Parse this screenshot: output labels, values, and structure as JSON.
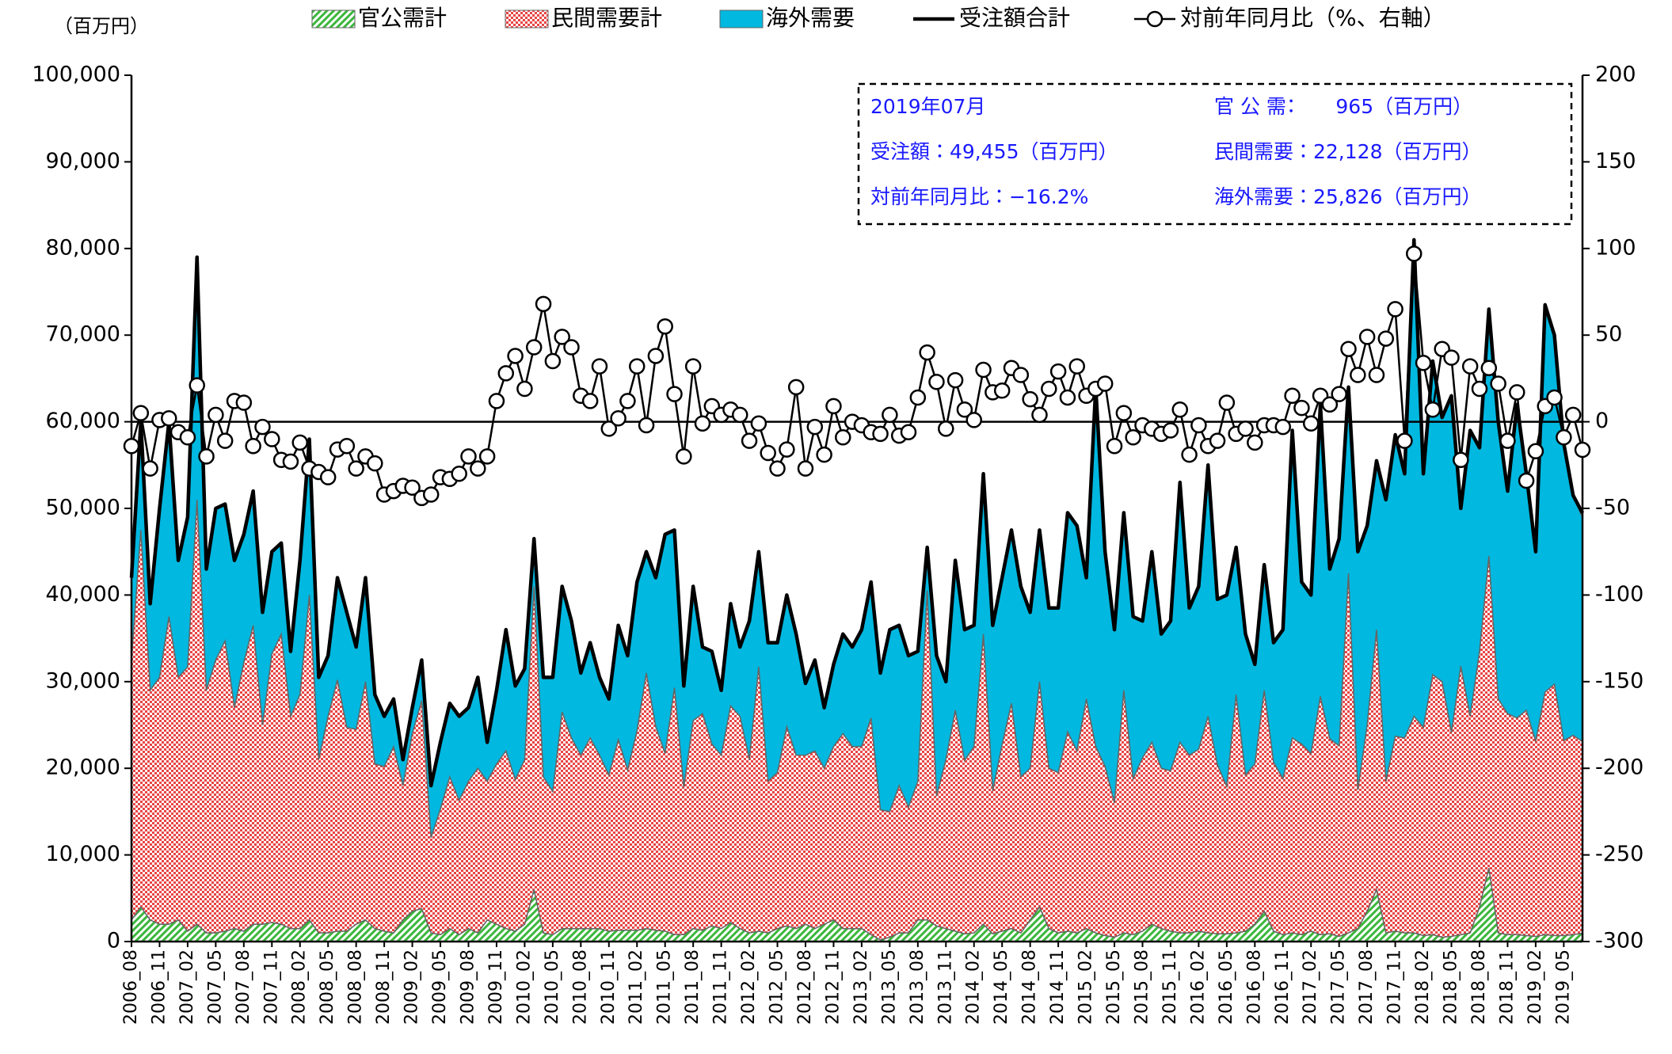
{
  "chart_data": {
    "type": "area",
    "y_unit": "（百万円）",
    "categories": [
      "2006_08",
      null,
      null,
      "2006_11",
      null,
      null,
      "2007_02",
      null,
      null,
      "2007_05",
      null,
      null,
      "2007_08",
      null,
      null,
      "2007_11",
      null,
      null,
      "2008_02",
      null,
      null,
      "2008_05",
      null,
      null,
      "2008_08",
      null,
      null,
      "2008_11",
      null,
      null,
      "2009_02",
      null,
      null,
      "2009_05",
      null,
      null,
      "2009_08",
      null,
      null,
      "2009_11",
      null,
      null,
      "2010_02",
      null,
      null,
      "2010_05",
      null,
      null,
      "2010_08",
      null,
      null,
      "2010_11",
      null,
      null,
      "2011_02",
      null,
      null,
      "2011_05",
      null,
      null,
      "2011_08",
      null,
      null,
      "2011_11",
      null,
      null,
      "2012_02",
      null,
      null,
      "2012_05",
      null,
      null,
      "2012_08",
      null,
      null,
      "2012_11",
      null,
      null,
      "2013_02",
      null,
      null,
      "2013_05",
      null,
      null,
      "2013_08",
      null,
      null,
      "2013_11",
      null,
      null,
      "2014_02",
      null,
      null,
      "2014_05",
      null,
      null,
      "2014_08",
      null,
      null,
      "2014_11",
      null,
      null,
      "2015_02",
      null,
      null,
      "2015_05",
      null,
      null,
      "2015_08",
      null,
      null,
      "2015_11",
      null,
      null,
      "2016_02",
      null,
      null,
      "2016_05",
      null,
      null,
      "2016_08",
      null,
      null,
      "2016_11",
      null,
      null,
      "2017_02",
      null,
      null,
      "2017_05",
      null,
      null,
      "2017_08",
      null,
      null,
      "2017_11",
      null,
      null,
      "2018_02",
      null,
      null,
      "2018_05",
      null,
      null,
      "2018_08",
      null,
      null,
      "2018_11",
      null,
      null,
      "2019_02",
      null,
      null,
      "2019_05",
      null,
      null
    ],
    "series": [
      {
        "name": "官公需計",
        "type": "area",
        "pattern": "hatch",
        "color": "#3cb73c",
        "values": [
          2500,
          4000,
          2500,
          2000,
          2000,
          2500,
          1200,
          2000,
          1000,
          1000,
          1200,
          1500,
          1200,
          2000,
          2000,
          2200,
          2000,
          1500,
          1500,
          2500,
          1000,
          1000,
          1200,
          1200,
          2000,
          2500,
          1500,
          1200,
          1000,
          2500,
          3500,
          3800,
          1000,
          800,
          1500,
          800,
          1500,
          1000,
          2500,
          2000,
          1500,
          1200,
          2000,
          6000,
          1000,
          800,
          1500,
          1500,
          1500,
          1500,
          1500,
          1200,
          1300,
          1300,
          1300,
          1500,
          1300,
          1200,
          800,
          800,
          1500,
          1300,
          1800,
          1500,
          2200,
          1500,
          1000,
          1200,
          1000,
          1500,
          1800,
          1500,
          2000,
          1500,
          2000,
          2500,
          1500,
          1500,
          1500,
          800,
          200,
          500,
          1000,
          1000,
          2500,
          2500,
          1800,
          1500,
          1200,
          900,
          1000,
          2000,
          900,
          1200,
          1500,
          1000,
          2500,
          4000,
          1500,
          1000,
          1200,
          1000,
          1500,
          1000,
          700,
          500,
          1000,
          800,
          1200,
          2000,
          1500,
          1200,
          1000,
          1000,
          1200,
          1000,
          900,
          900,
          1000,
          1200,
          2000,
          3500,
          1200,
          800,
          1000,
          800,
          1200,
          800,
          900,
          600,
          1000,
          1500,
          3500,
          6000,
          1000,
          1200,
          1000,
          1000,
          700,
          800,
          500,
          600,
          800,
          1000,
          4000,
          8500,
          1000,
          800,
          800,
          700,
          600,
          800,
          700,
          700,
          800,
          965
        ]
      },
      {
        "name": "民間需要計",
        "type": "area",
        "pattern": "check",
        "color": "#e84545",
        "values": [
          30000,
          43500,
          26500,
          28500,
          35500,
          28000,
          30500,
          49000,
          28000,
          31500,
          33500,
          25500,
          31000,
          34500,
          23000,
          31000,
          33500,
          24500,
          27000,
          37500,
          20000,
          25000,
          29000,
          23500,
          22500,
          27500,
          19000,
          19000,
          21500,
          15500,
          20500,
          24000,
          11000,
          14500,
          17500,
          15500,
          17000,
          19000,
          16000,
          18500,
          20500,
          17500,
          19000,
          35000,
          18000,
          16500,
          25000,
          22000,
          20000,
          22000,
          20000,
          18000,
          22000,
          18500,
          23000,
          29500,
          23500,
          20500,
          28500,
          17000,
          24000,
          25000,
          21000,
          20000,
          25000,
          24500,
          20000,
          30500,
          17500,
          18000,
          23000,
          20000,
          19500,
          20500,
          18000,
          20000,
          22500,
          21000,
          21000,
          25000,
          15000,
          14500,
          17000,
          14500,
          16000,
          38000,
          15000,
          19500,
          25500,
          20000,
          21500,
          33500,
          16500,
          21500,
          26000,
          18000,
          17500,
          26000,
          18500,
          18500,
          23000,
          21000,
          26500,
          21500,
          19500,
          15500,
          28000,
          18000,
          20000,
          21000,
          18500,
          18500,
          22000,
          20500,
          21000,
          25000,
          19500,
          17000,
          27500,
          18000,
          18500,
          25500,
          19500,
          18000,
          22500,
          22000,
          20500,
          27500,
          22500,
          22000,
          41500,
          16000,
          21500,
          30000,
          17500,
          22500,
          22500,
          25000,
          24000,
          30000,
          29500,
          23500,
          31000,
          25000,
          29500,
          36000,
          27000,
          25500,
          25000,
          26000,
          22500,
          28000,
          29000,
          22500,
          23000,
          22128
        ]
      },
      {
        "name": "海外需要",
        "type": "area",
        "pattern": "solid",
        "color": "#00b8e0",
        "values": [
          9500,
          12500,
          10000,
          19500,
          22500,
          13500,
          17300,
          28000,
          14000,
          17500,
          15800,
          17000,
          14800,
          15500,
          13000,
          11800,
          10500,
          7500,
          15500,
          18000,
          9500,
          7000,
          11800,
          13300,
          9500,
          12000,
          8000,
          5800,
          5500,
          3000,
          3000,
          4700,
          6000,
          7700,
          8500,
          9700,
          8500,
          10500,
          4500,
          8500,
          14000,
          10800,
          10500,
          5500,
          11500,
          13200,
          14500,
          13500,
          9500,
          11000,
          9000,
          8800,
          13200,
          13200,
          17200,
          14000,
          17200,
          25300,
          18200,
          11700,
          15500,
          7700,
          10700,
          7500,
          11800,
          8000,
          16000,
          13300,
          16000,
          15000,
          15200,
          14000,
          8300,
          10500,
          7000,
          9500,
          11500,
          11500,
          13500,
          15700,
          15800,
          21000,
          18500,
          17500,
          15000,
          5000,
          16200,
          9000,
          17300,
          15100,
          14000,
          18500,
          19100,
          19300,
          20000,
          22000,
          18000,
          17500,
          18500,
          19000,
          25300,
          26000,
          14000,
          41500,
          24800,
          20000,
          20500,
          18700,
          15800,
          22000,
          15500,
          17300,
          30000,
          17000,
          18800,
          29000,
          19100,
          22100,
          17000,
          16300,
          11500,
          14500,
          13800,
          17200,
          35500,
          18700,
          18300,
          33700,
          19600,
          23900,
          21500,
          27500,
          23000,
          19500,
          32500,
          34800,
          30500,
          55000,
          29300,
          36200,
          30500,
          38900,
          18200,
          33000,
          23500,
          28500,
          32000,
          25700,
          36200,
          27300,
          21900,
          44700,
          40300,
          34300,
          27700,
          25826
        ]
      },
      {
        "name": "受注額合計",
        "type": "line",
        "color": "#000000",
        "values": [
          42000,
          60000,
          39000,
          50000,
          60000,
          44000,
          49000,
          79000,
          43000,
          50000,
          50500,
          44000,
          47000,
          52000,
          38000,
          45000,
          46000,
          33500,
          44000,
          58000,
          30500,
          33000,
          42000,
          38000,
          34000,
          42000,
          28500,
          26000,
          28000,
          21000,
          27000,
          32500,
          18000,
          23000,
          27500,
          26000,
          27000,
          30500,
          23000,
          29000,
          36000,
          29500,
          31500,
          46500,
          30500,
          30500,
          41000,
          37000,
          31000,
          34500,
          30500,
          28000,
          36500,
          33000,
          41500,
          45000,
          42000,
          47000,
          47500,
          29500,
          41000,
          34000,
          33500,
          29000,
          39000,
          34000,
          37000,
          45000,
          34500,
          34500,
          40000,
          35500,
          29800,
          32500,
          27000,
          32000,
          35500,
          34000,
          36000,
          41500,
          31000,
          36000,
          36500,
          33000,
          33500,
          45500,
          33000,
          30000,
          44000,
          36000,
          36500,
          54000,
          36500,
          42000,
          47500,
          41000,
          38000,
          47500,
          38500,
          38500,
          49500,
          48000,
          42000,
          64000,
          45000,
          36000,
          49500,
          37500,
          37000,
          45000,
          35500,
          37000,
          53000,
          38500,
          41000,
          55000,
          39500,
          40000,
          45500,
          35500,
          32000,
          43500,
          34500,
          36000,
          59000,
          41500,
          40000,
          62000,
          43000,
          46500,
          64000,
          45000,
          48000,
          55500,
          51000,
          58500,
          54000,
          81000,
          54000,
          67000,
          60500,
          63000,
          50000,
          59000,
          57000,
          73000,
          60000,
          52000,
          62000,
          54000,
          45000,
          73500,
          70000,
          57500,
          51500,
          49455
        ]
      },
      {
        "name": "対前年同月比（%、右軸）",
        "type": "line",
        "marker": "circle",
        "axis": "y2",
        "color": "#000000",
        "values": [
          -14,
          5,
          -27,
          1,
          2,
          -6,
          -9,
          21,
          -20,
          4,
          -11,
          12,
          11,
          -14,
          -3,
          -10,
          -22,
          -23,
          -12,
          -27,
          -29,
          -32,
          -16,
          -14,
          -27,
          -20,
          -24,
          -42,
          -40,
          -37,
          -38,
          -44,
          -42,
          -32,
          -33,
          -30,
          -20,
          -27,
          -20,
          12,
          28,
          38,
          19,
          43,
          68,
          35,
          49,
          43,
          15,
          12,
          32,
          -4,
          2,
          12,
          32,
          -2,
          38,
          55,
          16,
          -20,
          32,
          -1,
          9,
          4,
          7,
          4,
          -11,
          -1,
          -18,
          -27,
          -16,
          20,
          -27,
          -3,
          -19,
          9,
          -9,
          0,
          -2,
          -6,
          -7,
          4,
          -8,
          -6,
          14,
          40,
          23,
          -4,
          24,
          7,
          1,
          30,
          17,
          18,
          31,
          27,
          13,
          4,
          19,
          29,
          14,
          32,
          15,
          19,
          22,
          -14,
          5,
          -9,
          -2,
          -4,
          -7,
          -5,
          7,
          -19,
          -2,
          -14,
          -11,
          11,
          -7,
          -4,
          -12,
          -2,
          -2,
          -3,
          15,
          8,
          -1,
          15,
          10,
          16,
          42,
          27,
          49,
          27,
          48,
          65,
          -11,
          97,
          34,
          7,
          42,
          37,
          -22,
          32,
          19,
          31,
          22,
          -11,
          17,
          -34,
          -17,
          9,
          14,
          -9,
          4,
          -16.2
        ]
      }
    ],
    "ylim": [
      0,
      100000
    ],
    "yticks": [
      0,
      {
        "value": 10000,
        "label": "10,000"
      },
      {
        "value": 20000,
        "label": "20,000"
      },
      {
        "value": 30000,
        "label": "30,000"
      },
      {
        "value": 40000,
        "label": "40,000"
      },
      {
        "value": 50000,
        "label": "50,000"
      },
      {
        "value": 60000,
        "label": "60,000"
      },
      {
        "value": 70000,
        "label": "70,000"
      },
      {
        "value": 80000,
        "label": "80,000"
      },
      {
        "value": 90000,
        "label": "90,000"
      },
      {
        "value": 100000,
        "label": "100,000"
      }
    ],
    "y2lim": [
      -300,
      200
    ],
    "y2ticks": [
      -300,
      -250,
      -200,
      -150,
      -100,
      -50,
      0,
      50,
      100,
      150,
      200
    ],
    "y2_zero_line": true,
    "legend": "top",
    "annotations": [
      "2019年07月",
      "官 公 需：　　965（百万円）",
      "受注額：49,455（百万円）",
      "民間需要：22,128（百万円）",
      "対前年同月比：−16.2%",
      "海外需要：25,826（百万円）"
    ]
  }
}
